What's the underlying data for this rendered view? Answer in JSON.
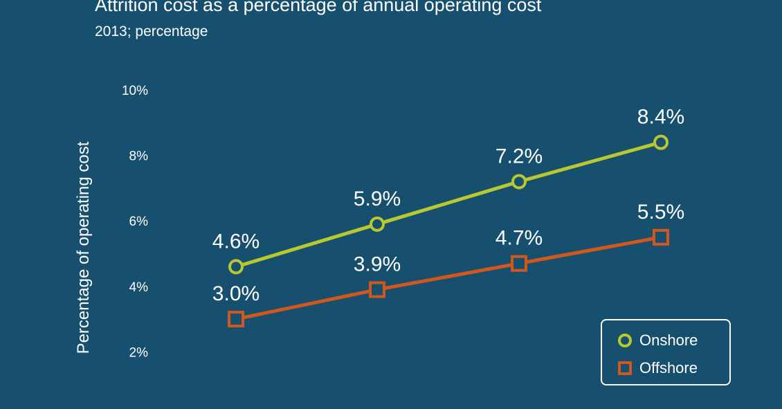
{
  "header": {
    "title": "Attrition cost as a percentage of annual operating cost",
    "subtitle": "2013; percentage"
  },
  "colors": {
    "background": "#17506e",
    "onshore": "#b9c731",
    "offshore": "#d2571d",
    "text": "#ffffff"
  },
  "legend": {
    "items": [
      {
        "label": "Onshore",
        "marker": "circle"
      },
      {
        "label": "Offshore",
        "marker": "square"
      }
    ]
  },
  "chart_data": {
    "type": "line",
    "title": "Attrition cost as a percentage of annual operating cost",
    "subtitle": "2013; percentage",
    "xlabel": "",
    "ylabel": "Percentage of operating cost",
    "ylim": [
      0,
      10
    ],
    "yticks": [
      "2%",
      "4%",
      "6%",
      "8%",
      "10%"
    ],
    "categories": [
      "",
      "",
      "",
      ""
    ],
    "series": [
      {
        "name": "Onshore",
        "values": [
          4.6,
          5.9,
          7.2,
          8.4
        ],
        "labels": [
          "4.6%",
          "5.9%",
          "7.2%",
          "8.4%"
        ],
        "marker": "circle"
      },
      {
        "name": "Offshore",
        "values": [
          3.0,
          3.9,
          4.7,
          5.5
        ],
        "labels": [
          "3.0%",
          "3.9%",
          "4.7%",
          "5.5%"
        ],
        "marker": "square"
      }
    ],
    "grid": false,
    "legend_position": "bottom-right"
  }
}
